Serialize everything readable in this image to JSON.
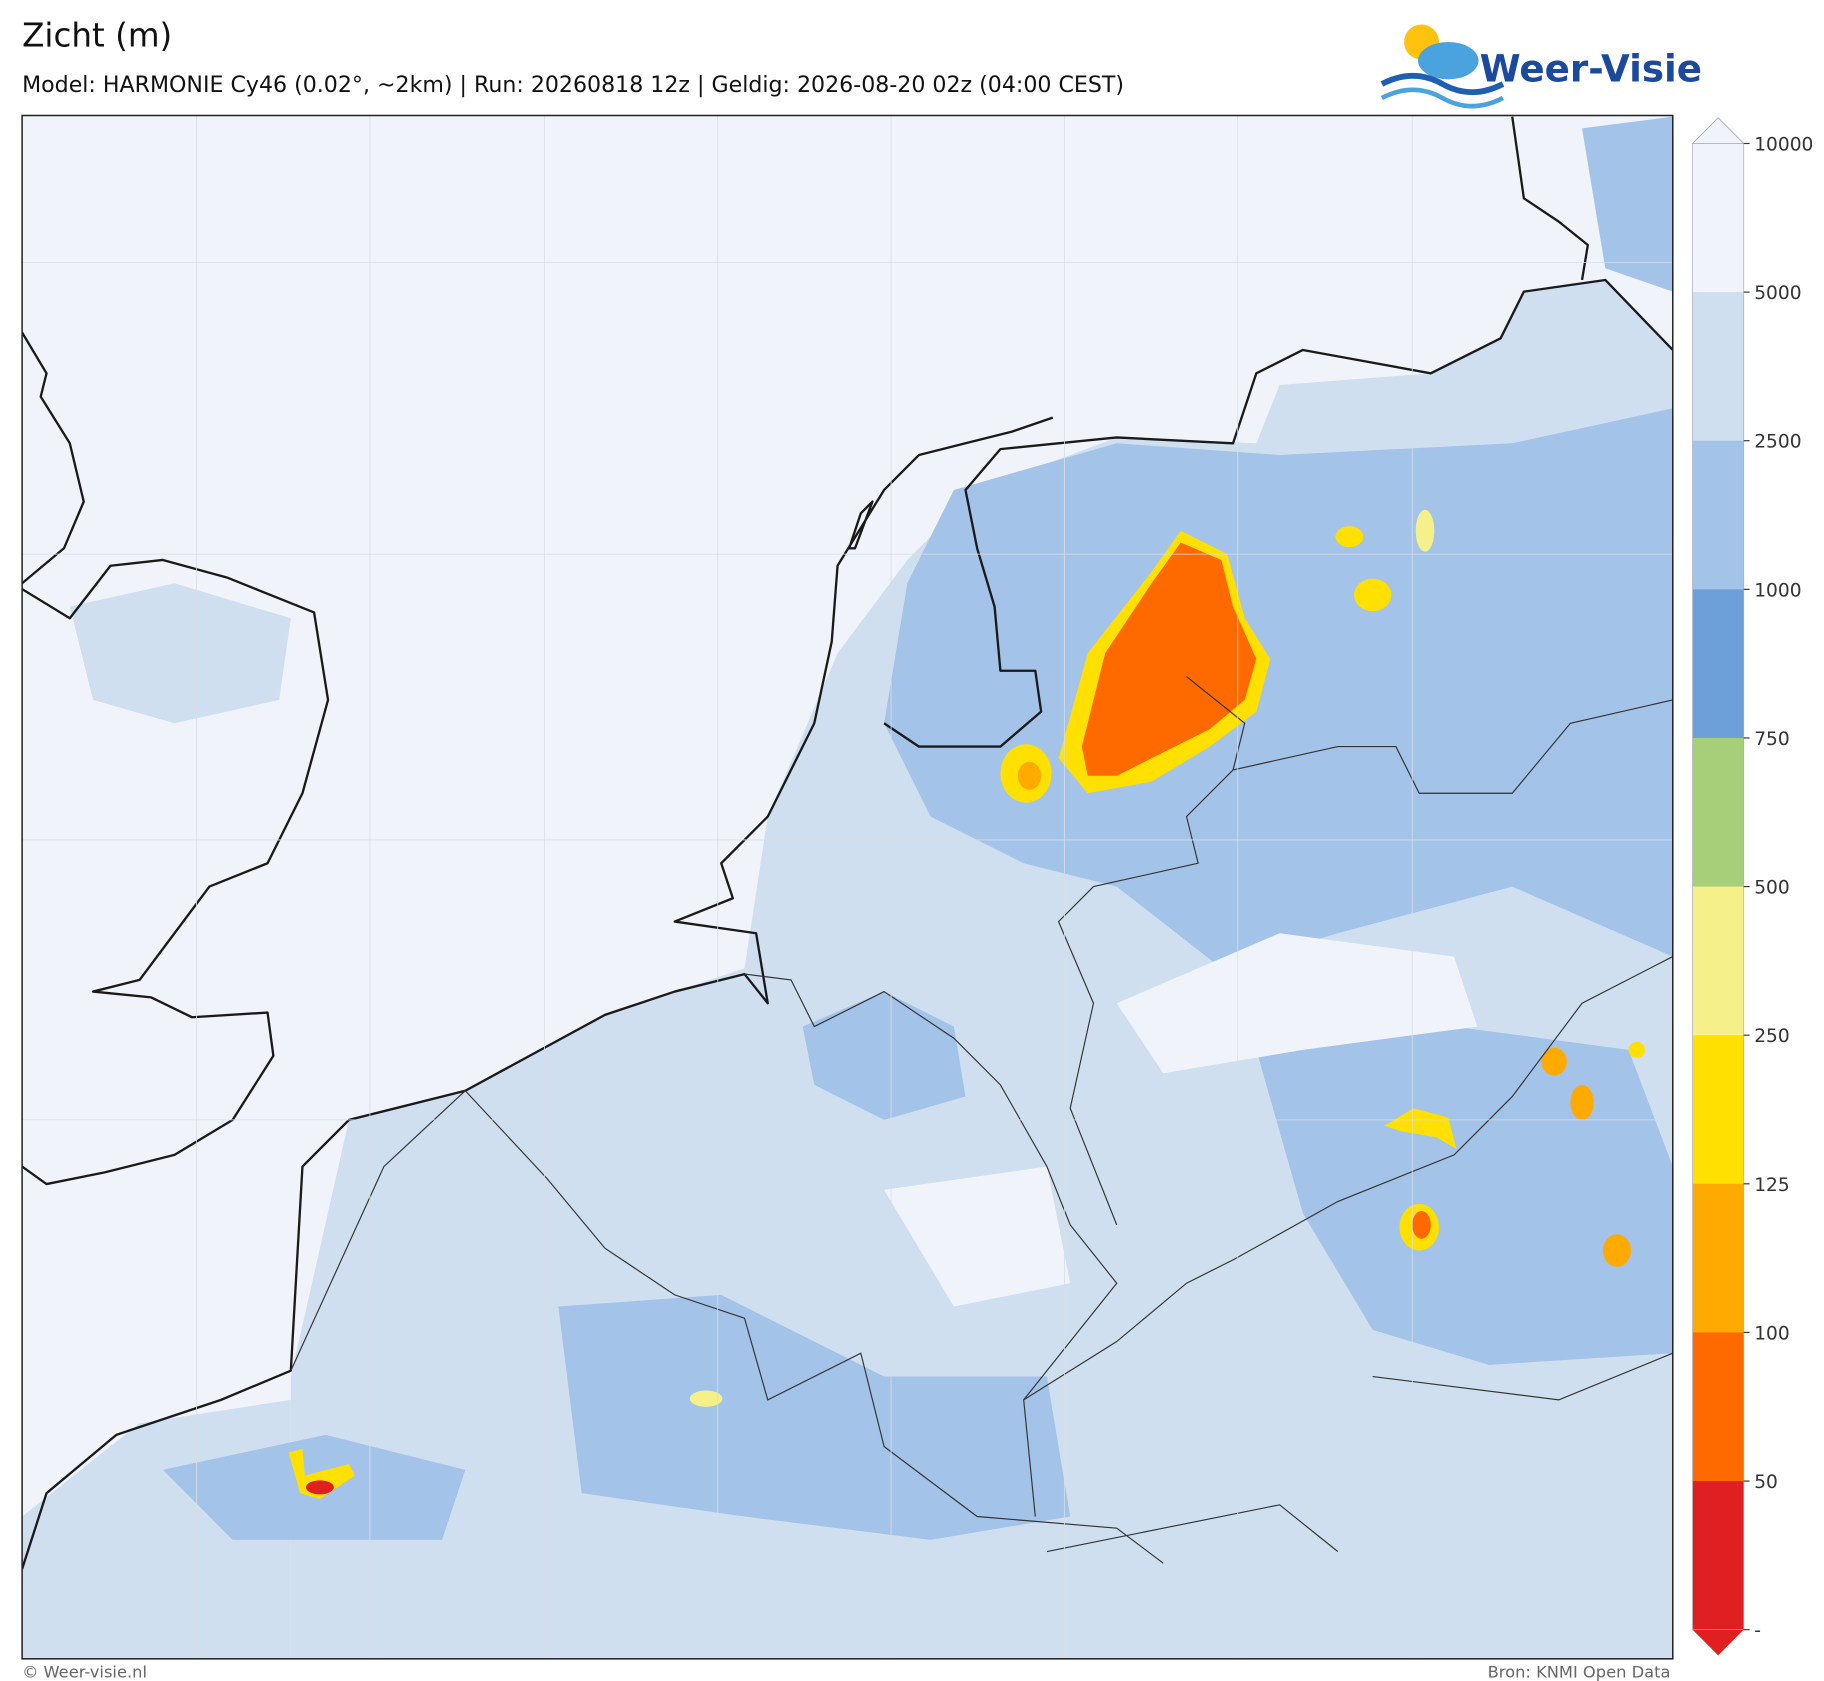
{
  "header": {
    "title": "Zicht (m)",
    "subtitle": "Model: HARMONIE Cy46 (0.02°, ~2km)  |  Run: 20260818 12z  |  Geldig: 2026-08-20 02z (04:00 CEST)",
    "logo": "Weer-Visie"
  },
  "colorbar": {
    "labels": [
      "10000",
      "5000",
      "2500",
      "1000",
      "750",
      "500",
      "250",
      "125",
      "100",
      "50",
      "-"
    ],
    "colors": [
      "#f0f4fa",
      "#cfdff0",
      "#a3c3e8",
      "#6d9fd8",
      "#a6cf7a",
      "#f5f08a",
      "#ffe000",
      "#ffaa00",
      "#ff6a00",
      "#e02020"
    ],
    "over_color": "#f0f4fa",
    "under_color": "#e02020"
  },
  "footer": {
    "left": "© Weer-visie.nl",
    "right": "Bron: KNMI Open Data"
  }
}
